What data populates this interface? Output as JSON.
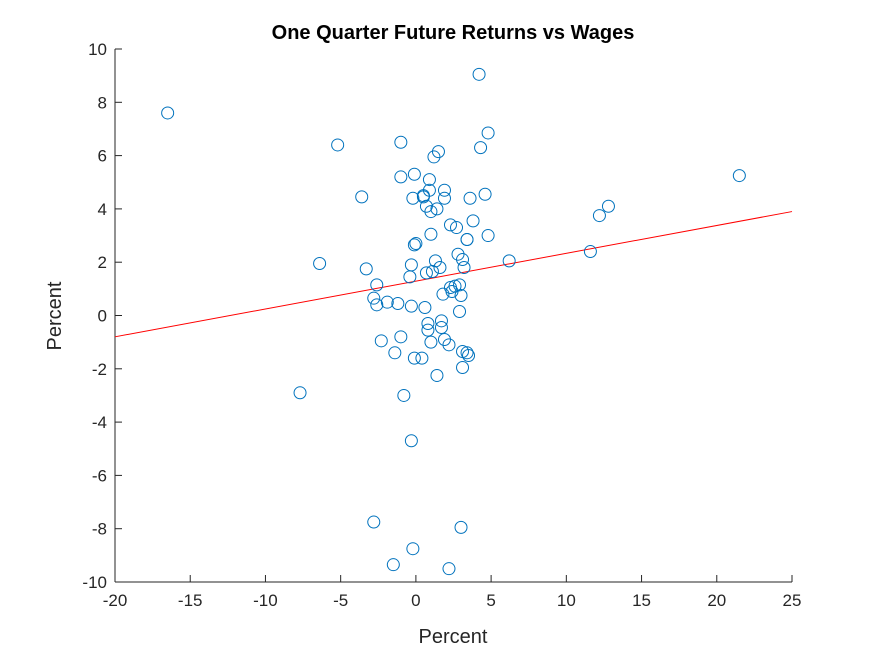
{
  "chart_data": {
    "type": "scatter",
    "title": "One Quarter Future Returns vs Wages",
    "xlabel": "Percent",
    "ylabel": "Percent",
    "xlim": [
      -20,
      25
    ],
    "ylim": [
      -10,
      10
    ],
    "xticks": [
      -20,
      -15,
      -10,
      -5,
      0,
      5,
      10,
      15,
      20,
      25
    ],
    "yticks": [
      -10,
      -8,
      -6,
      -4,
      -2,
      0,
      2,
      4,
      6,
      8,
      10
    ],
    "grid": false,
    "legend": "none",
    "colors": {
      "points": "#0072BD",
      "fit_line": "#FF0000",
      "axes": "#262626"
    },
    "series": [
      {
        "marker": "circle-open",
        "points": [
          [
            -16.5,
            7.6
          ],
          [
            -5.2,
            6.4
          ],
          [
            -3.6,
            4.45
          ],
          [
            -6.4,
            1.95
          ],
          [
            -7.7,
            -2.9
          ],
          [
            -3.3,
            1.75
          ],
          [
            -2.6,
            1.15
          ],
          [
            -2.8,
            0.65
          ],
          [
            -2.6,
            0.4
          ],
          [
            -1.9,
            0.5
          ],
          [
            -1.2,
            0.45
          ],
          [
            -2.3,
            -0.95
          ],
          [
            -1.4,
            -1.4
          ],
          [
            -1.0,
            -0.8
          ],
          [
            -0.8,
            -3.0
          ],
          [
            -2.8,
            -7.75
          ],
          [
            -1.5,
            -9.35
          ],
          [
            -0.2,
            -8.75
          ],
          [
            -0.3,
            -4.7
          ],
          [
            2.2,
            -9.5
          ],
          [
            3.0,
            -7.95
          ],
          [
            -1.0,
            6.5
          ],
          [
            -1.0,
            5.2
          ],
          [
            -0.1,
            5.3
          ],
          [
            -0.2,
            4.4
          ],
          [
            0.5,
            4.45
          ],
          [
            0.9,
            5.1
          ],
          [
            0.9,
            4.7
          ],
          [
            0.7,
            4.1
          ],
          [
            1.0,
            3.9
          ],
          [
            1.2,
            5.95
          ],
          [
            1.5,
            6.15
          ],
          [
            1.4,
            4.0
          ],
          [
            1.9,
            4.7
          ],
          [
            1.9,
            4.4
          ],
          [
            2.3,
            3.4
          ],
          [
            2.7,
            3.3
          ],
          [
            1.0,
            3.05
          ],
          [
            0.0,
            2.7
          ],
          [
            -0.1,
            2.65
          ],
          [
            3.4,
            2.85
          ],
          [
            3.6,
            4.4
          ],
          [
            3.8,
            3.55
          ],
          [
            4.3,
            6.3
          ],
          [
            4.6,
            4.55
          ],
          [
            4.8,
            6.85
          ],
          [
            4.2,
            9.05
          ],
          [
            4.8,
            3.0
          ],
          [
            6.2,
            2.05
          ],
          [
            2.8,
            2.3
          ],
          [
            3.1,
            2.1
          ],
          [
            3.2,
            1.8
          ],
          [
            2.6,
            1.1
          ],
          [
            2.9,
            1.15
          ],
          [
            2.3,
            1.05
          ],
          [
            2.4,
            0.9
          ],
          [
            3.0,
            0.75
          ],
          [
            2.9,
            0.15
          ],
          [
            1.8,
            0.8
          ],
          [
            1.6,
            1.8
          ],
          [
            1.3,
            2.05
          ],
          [
            1.1,
            1.65
          ],
          [
            0.7,
            1.6
          ],
          [
            -0.3,
            1.9
          ],
          [
            -0.4,
            1.45
          ],
          [
            0.6,
            0.3
          ],
          [
            -0.3,
            0.35
          ],
          [
            0.8,
            -0.3
          ],
          [
            0.8,
            -0.55
          ],
          [
            1.7,
            -0.2
          ],
          [
            1.7,
            -0.45
          ],
          [
            1.9,
            -0.9
          ],
          [
            2.2,
            -1.1
          ],
          [
            1.0,
            -1.0
          ],
          [
            3.1,
            -1.35
          ],
          [
            3.4,
            -1.4
          ],
          [
            3.5,
            -1.5
          ],
          [
            3.1,
            -1.95
          ],
          [
            0.4,
            -1.6
          ],
          [
            -0.1,
            -1.6
          ],
          [
            1.4,
            -2.25
          ],
          [
            11.6,
            2.4
          ],
          [
            12.2,
            3.75
          ],
          [
            12.8,
            4.1
          ],
          [
            21.5,
            5.25
          ],
          [
            3.4,
            2.85
          ],
          [
            0.5,
            4.5
          ]
        ]
      }
    ],
    "fit_line": {
      "x": [
        -20,
        25
      ],
      "y": [
        -0.8,
        3.9
      ]
    }
  }
}
